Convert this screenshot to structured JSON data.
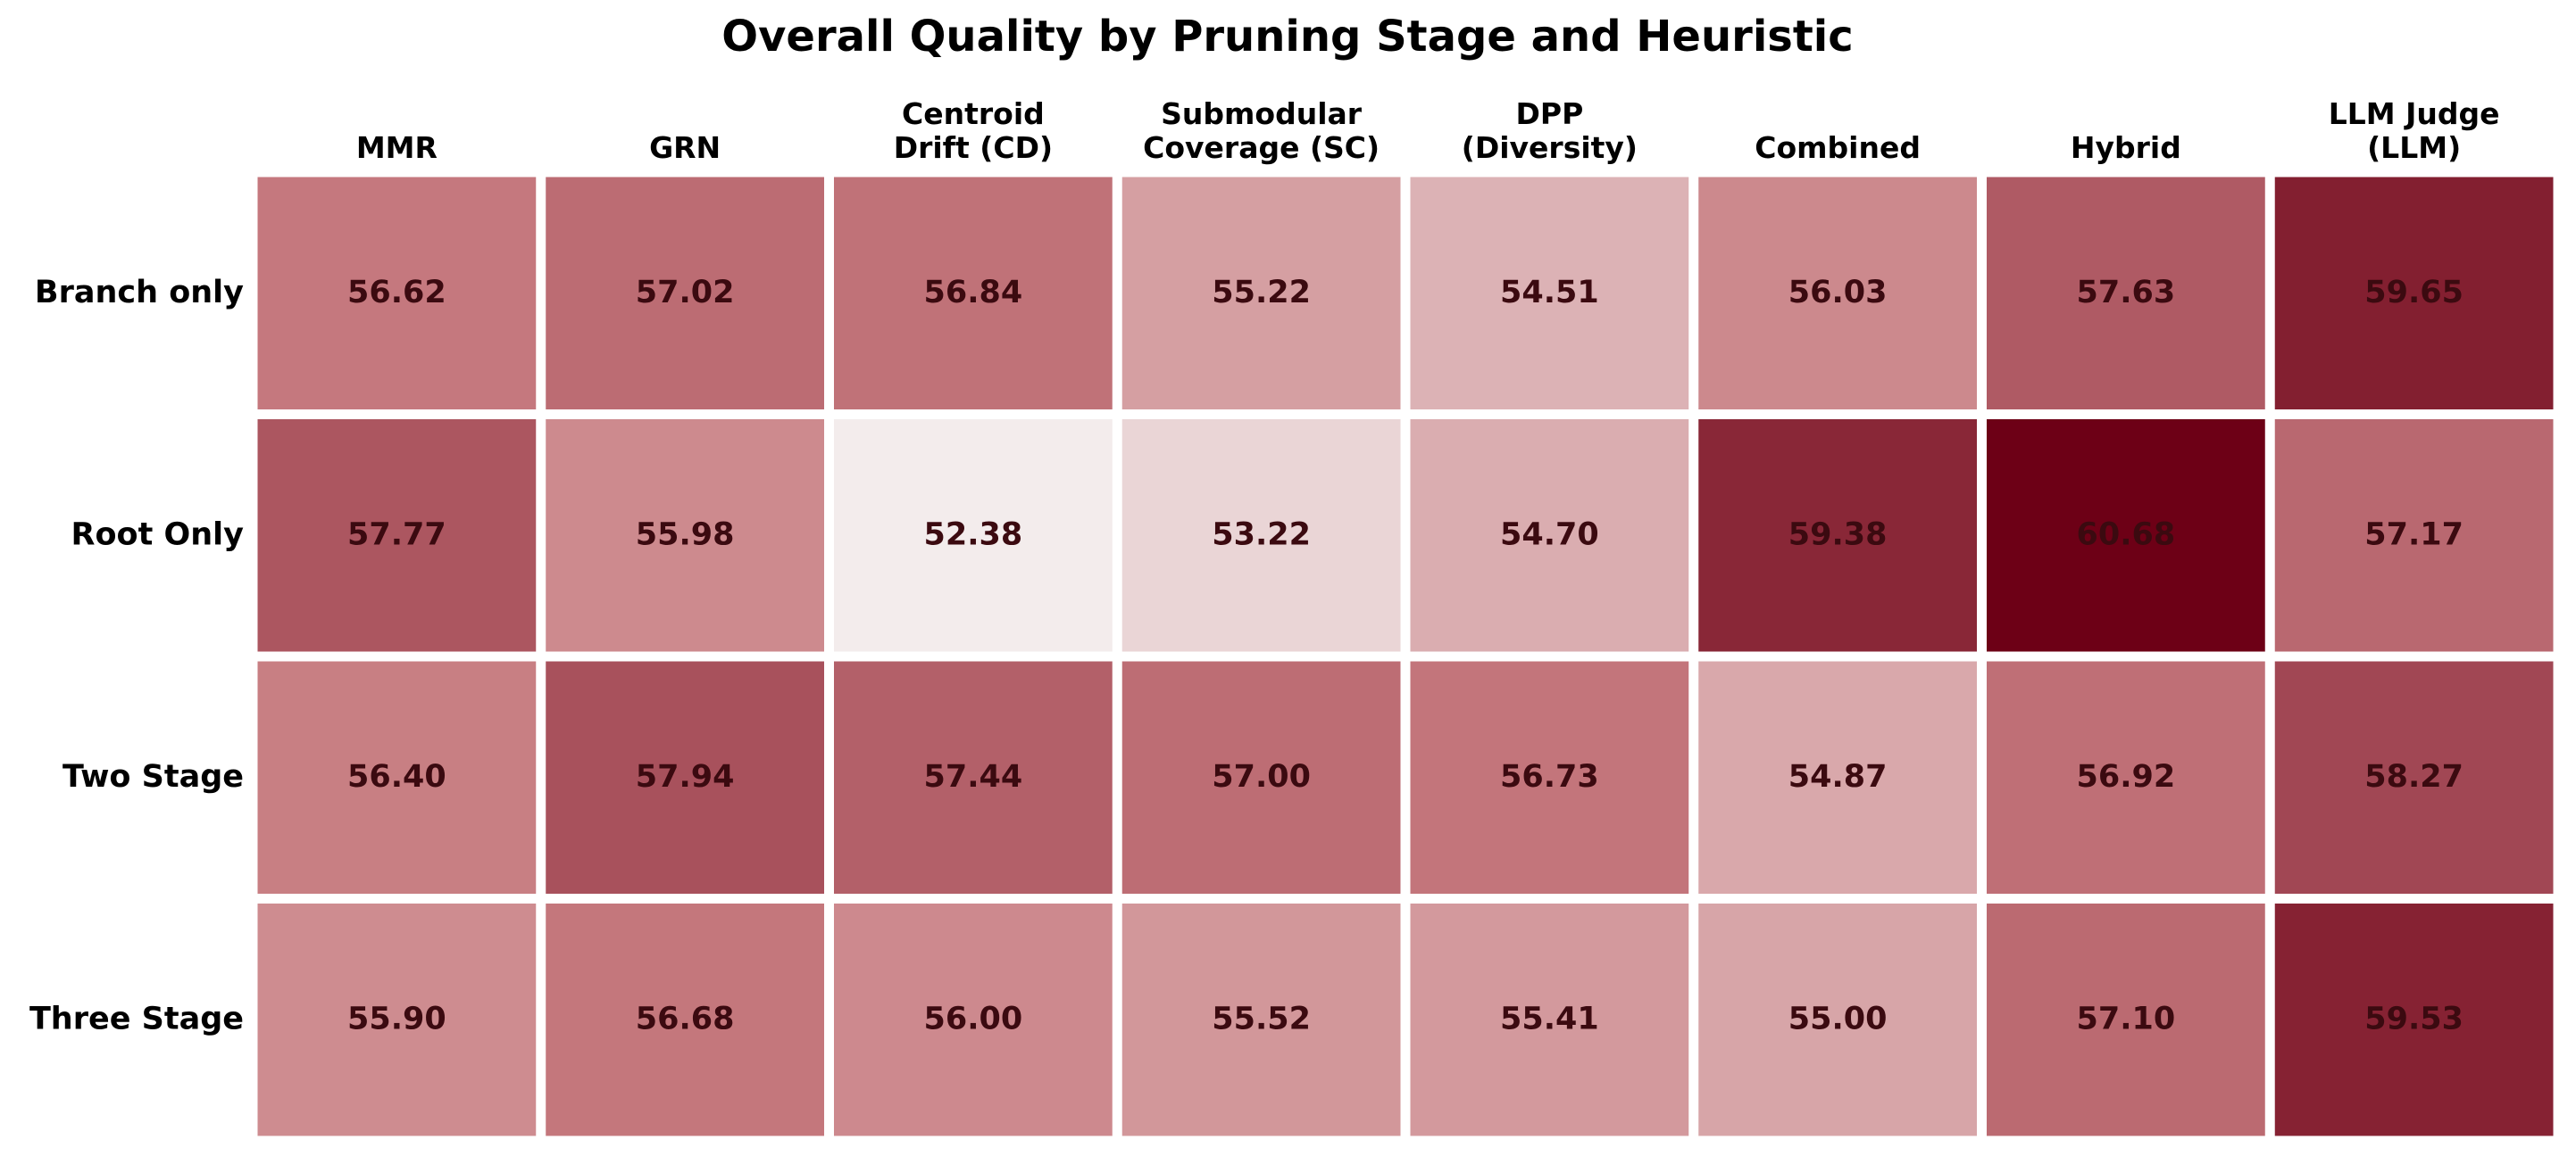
{
  "chart_data": {
    "type": "heatmap",
    "title": "Overall Quality by Pruning Stage and Heuristic",
    "x_categories": [
      "MMR",
      "GRN",
      "Centroid\nDrift (CD)",
      "Submodular\nCoverage (SC)",
      "DPP\n(Diversity)",
      "Combined",
      "Hybrid",
      "LLM Judge\n(LLM)"
    ],
    "y_categories": [
      "Branch only",
      "Root Only",
      "Two Stage",
      "Three Stage"
    ],
    "values": [
      [
        56.62,
        57.02,
        56.84,
        55.22,
        54.51,
        56.03,
        57.63,
        59.65
      ],
      [
        57.77,
        55.98,
        52.38,
        53.22,
        54.7,
        59.38,
        60.68,
        57.17
      ],
      [
        56.4,
        57.94,
        57.44,
        57.0,
        56.73,
        54.87,
        56.92,
        58.27
      ],
      [
        55.9,
        56.68,
        56.0,
        55.52,
        55.41,
        55.0,
        57.1,
        59.53
      ]
    ],
    "value_labels": [
      [
        "56.62",
        "57.02",
        "56.84",
        "55.22",
        "54.51",
        "56.03",
        "57.63",
        "59.65"
      ],
      [
        "57.77",
        "55.98",
        "52.38",
        "53.22",
        "54.70",
        "59.38",
        "60.68",
        "57.17"
      ],
      [
        "56.40",
        "57.94",
        "57.44",
        "57.00",
        "56.73",
        "54.87",
        "56.92",
        "58.27"
      ],
      [
        "55.90",
        "56.68",
        "56.00",
        "55.52",
        "55.41",
        "55.00",
        "57.10",
        "59.53"
      ]
    ],
    "colors": [
      "#f3ecec",
      "#c77b80",
      "#6d0016"
    ]
  }
}
